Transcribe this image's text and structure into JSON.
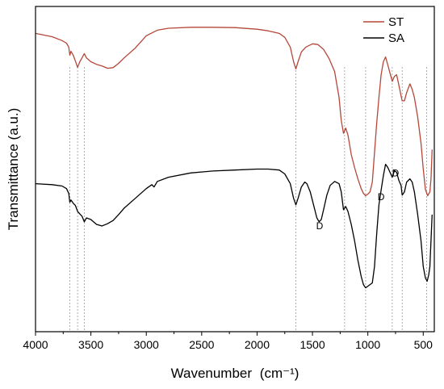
{
  "chart_data": {
    "type": "line",
    "title": "",
    "xlabel": "Wavenumber",
    "xlabel_unit": "(cm⁻¹)",
    "ylabel": "Transmittance (a.u.)",
    "x_reversed": true,
    "xlim": [
      4000,
      400
    ],
    "ylim": [
      0,
      1
    ],
    "y_ticks_shown": false,
    "grid": false,
    "legend_position": "top-right",
    "x_ticks": [
      4000,
      3500,
      3000,
      2500,
      2000,
      1500,
      1000,
      500
    ],
    "x_tick_labels": [
      "4000",
      "3500",
      "3000",
      "2500",
      "2000",
      "1500",
      "1000",
      "500"
    ],
    "reference_lines": [
      3690,
      3620,
      3560,
      1650,
      1210,
      1020,
      780,
      690,
      470
    ],
    "series": [
      {
        "name": "ST",
        "color": "#b5473a",
        "points": [
          [
            4000,
            0.917
          ],
          [
            3850,
            0.907
          ],
          [
            3760,
            0.895
          ],
          [
            3720,
            0.887
          ],
          [
            3700,
            0.875
          ],
          [
            3690,
            0.85
          ],
          [
            3680,
            0.862
          ],
          [
            3660,
            0.85
          ],
          [
            3640,
            0.832
          ],
          [
            3620,
            0.813
          ],
          [
            3600,
            0.83
          ],
          [
            3580,
            0.842
          ],
          [
            3560,
            0.855
          ],
          [
            3540,
            0.842
          ],
          [
            3500,
            0.83
          ],
          [
            3450,
            0.822
          ],
          [
            3400,
            0.817
          ],
          [
            3350,
            0.81
          ],
          [
            3300,
            0.812
          ],
          [
            3250,
            0.825
          ],
          [
            3200,
            0.842
          ],
          [
            3100,
            0.872
          ],
          [
            3000,
            0.91
          ],
          [
            2900,
            0.927
          ],
          [
            2800,
            0.933
          ],
          [
            2600,
            0.936
          ],
          [
            2400,
            0.936
          ],
          [
            2200,
            0.935
          ],
          [
            2000,
            0.93
          ],
          [
            1900,
            0.925
          ],
          [
            1800,
            0.917
          ],
          [
            1750,
            0.905
          ],
          [
            1700,
            0.875
          ],
          [
            1670,
            0.83
          ],
          [
            1650,
            0.808
          ],
          [
            1630,
            0.83
          ],
          [
            1600,
            0.86
          ],
          [
            1560,
            0.875
          ],
          [
            1500,
            0.885
          ],
          [
            1450,
            0.883
          ],
          [
            1400,
            0.868
          ],
          [
            1350,
            0.84
          ],
          [
            1300,
            0.8
          ],
          [
            1260,
            0.72
          ],
          [
            1240,
            0.65
          ],
          [
            1220,
            0.61
          ],
          [
            1200,
            0.626
          ],
          [
            1180,
            0.605
          ],
          [
            1150,
            0.545
          ],
          [
            1120,
            0.505
          ],
          [
            1090,
            0.47
          ],
          [
            1060,
            0.44
          ],
          [
            1040,
            0.425
          ],
          [
            1020,
            0.418
          ],
          [
            1000,
            0.423
          ],
          [
            980,
            0.43
          ],
          [
            960,
            0.46
          ],
          [
            940,
            0.55
          ],
          [
            920,
            0.64
          ],
          [
            900,
            0.72
          ],
          [
            880,
            0.79
          ],
          [
            860,
            0.83
          ],
          [
            840,
            0.845
          ],
          [
            820,
            0.82
          ],
          [
            800,
            0.795
          ],
          [
            780,
            0.77
          ],
          [
            760,
            0.785
          ],
          [
            740,
            0.79
          ],
          [
            720,
            0.758
          ],
          [
            700,
            0.725
          ],
          [
            690,
            0.71
          ],
          [
            670,
            0.71
          ],
          [
            650,
            0.735
          ],
          [
            620,
            0.762
          ],
          [
            600,
            0.745
          ],
          [
            580,
            0.72
          ],
          [
            550,
            0.66
          ],
          [
            520,
            0.58
          ],
          [
            500,
            0.5
          ],
          [
            480,
            0.437
          ],
          [
            460,
            0.418
          ],
          [
            440,
            0.43
          ],
          [
            430,
            0.47
          ],
          [
            420,
            0.56
          ]
        ]
      },
      {
        "name": "SA",
        "color": "#000000",
        "points": [
          [
            4000,
            0.455
          ],
          [
            3850,
            0.452
          ],
          [
            3760,
            0.448
          ],
          [
            3720,
            0.44
          ],
          [
            3700,
            0.425
          ],
          [
            3690,
            0.398
          ],
          [
            3680,
            0.405
          ],
          [
            3660,
            0.395
          ],
          [
            3640,
            0.388
          ],
          [
            3620,
            0.37
          ],
          [
            3600,
            0.362
          ],
          [
            3580,
            0.355
          ],
          [
            3560,
            0.338
          ],
          [
            3540,
            0.35
          ],
          [
            3500,
            0.345
          ],
          [
            3450,
            0.33
          ],
          [
            3400,
            0.325
          ],
          [
            3350,
            0.332
          ],
          [
            3300,
            0.342
          ],
          [
            3250,
            0.36
          ],
          [
            3200,
            0.38
          ],
          [
            3100,
            0.41
          ],
          [
            3000,
            0.44
          ],
          [
            2950,
            0.452
          ],
          [
            2930,
            0.445
          ],
          [
            2900,
            0.462
          ],
          [
            2800,
            0.475
          ],
          [
            2600,
            0.488
          ],
          [
            2400,
            0.494
          ],
          [
            2200,
            0.497
          ],
          [
            2000,
            0.5
          ],
          [
            1900,
            0.5
          ],
          [
            1800,
            0.497
          ],
          [
            1750,
            0.485
          ],
          [
            1700,
            0.455
          ],
          [
            1670,
            0.41
          ],
          [
            1650,
            0.39
          ],
          [
            1630,
            0.41
          ],
          [
            1600,
            0.445
          ],
          [
            1570,
            0.46
          ],
          [
            1550,
            0.455
          ],
          [
            1520,
            0.43
          ],
          [
            1490,
            0.39
          ],
          [
            1460,
            0.35
          ],
          [
            1440,
            0.338
          ],
          [
            1420,
            0.345
          ],
          [
            1400,
            0.375
          ],
          [
            1370,
            0.42
          ],
          [
            1340,
            0.45
          ],
          [
            1300,
            0.462
          ],
          [
            1260,
            0.455
          ],
          [
            1240,
            0.43
          ],
          [
            1220,
            0.375
          ],
          [
            1200,
            0.385
          ],
          [
            1180,
            0.37
          ],
          [
            1150,
            0.33
          ],
          [
            1120,
            0.28
          ],
          [
            1090,
            0.22
          ],
          [
            1060,
            0.17
          ],
          [
            1040,
            0.145
          ],
          [
            1020,
            0.135
          ],
          [
            1000,
            0.14
          ],
          [
            980,
            0.145
          ],
          [
            960,
            0.15
          ],
          [
            940,
            0.2
          ],
          [
            920,
            0.3
          ],
          [
            900,
            0.39
          ],
          [
            880,
            0.435
          ],
          [
            860,
            0.48
          ],
          [
            840,
            0.515
          ],
          [
            820,
            0.505
          ],
          [
            800,
            0.49
          ],
          [
            780,
            0.475
          ],
          [
            760,
            0.495
          ],
          [
            740,
            0.49
          ],
          [
            720,
            0.465
          ],
          [
            700,
            0.45
          ],
          [
            690,
            0.42
          ],
          [
            670,
            0.43
          ],
          [
            650,
            0.46
          ],
          [
            620,
            0.47
          ],
          [
            600,
            0.46
          ],
          [
            580,
            0.43
          ],
          [
            550,
            0.36
          ],
          [
            520,
            0.28
          ],
          [
            500,
            0.2
          ],
          [
            480,
            0.165
          ],
          [
            465,
            0.155
          ],
          [
            450,
            0.175
          ],
          [
            440,
            0.2
          ],
          [
            430,
            0.28
          ],
          [
            420,
            0.36
          ]
        ]
      }
    ],
    "annotations": [
      {
        "text": "D",
        "x": 1435,
        "y": 0.315
      },
      {
        "text": "D",
        "x": 880,
        "y": 0.405
      },
      {
        "text": "D",
        "x": 750,
        "y": 0.478
      }
    ]
  }
}
